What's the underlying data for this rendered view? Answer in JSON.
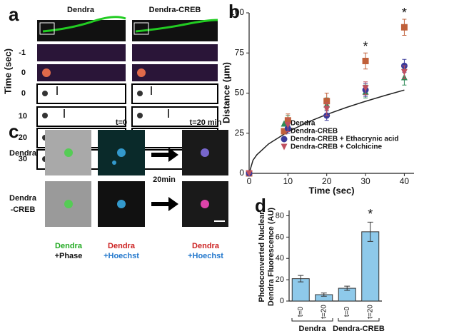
{
  "figure": {
    "letters": [
      "a",
      "b",
      "c",
      "d"
    ],
    "panel_a": {
      "columns": [
        "Dendra",
        "Dendra-CREB"
      ],
      "rows": [
        "-1",
        "0",
        "0",
        "10",
        "20",
        "30"
      ],
      "y_label": "Time (sec)"
    },
    "panel_c": {
      "t0": "t=0",
      "t20": "t=20 min",
      "row1": "Dendra",
      "row2": [
        "Dendra",
        "-CREB"
      ],
      "arrow": "20min",
      "bottom": [
        [
          "Dendra",
          "+Phase"
        ],
        [
          "Dendra",
          "+Hoechst"
        ],
        [
          "Dendra",
          "+Hoechst"
        ]
      ]
    }
  },
  "chart_data": [
    {
      "type": "scatter",
      "xlabel": "Time (sec)",
      "ylabel": "Distance (μm)",
      "x": [
        0,
        10,
        20,
        30,
        40
      ],
      "xlim": [
        0,
        42.5
      ],
      "ylim": [
        0,
        100
      ],
      "xticks": [
        0,
        10,
        20,
        30,
        40
      ],
      "yticks": [
        0,
        25,
        50,
        75,
        100
      ],
      "series": [
        {
          "name": "Dendra",
          "color": "#2e8b57",
          "marker": "triangle",
          "values": [
            0,
            33,
            43,
            51,
            60
          ],
          "errors": [
            0,
            3,
            4,
            4,
            5
          ]
        },
        {
          "name": "Dendra-CREB",
          "color": "#c0603a",
          "marker": "square",
          "values": [
            0,
            33,
            45,
            70,
            91
          ],
          "errors": [
            0,
            4,
            5,
            5,
            5
          ]
        },
        {
          "name": "Dendra-CREB + Ethacrynic acid",
          "color": "#3a3a9a",
          "marker": "circle",
          "values": [
            0,
            28,
            36,
            52,
            67
          ],
          "errors": [
            0,
            3,
            3,
            4,
            4
          ]
        },
        {
          "name": "Dendra-CREB + Colchicine",
          "color": "#c05060",
          "marker": "down",
          "values": [
            0,
            30,
            40,
            53,
            63
          ],
          "errors": [
            0,
            4,
            4,
            4,
            4
          ]
        }
      ],
      "fit": {
        "x": [
          0,
          1,
          2,
          5,
          10,
          15,
          20,
          25,
          30,
          35,
          40
        ],
        "values": [
          0,
          8.2,
          11.6,
          18.3,
          25.9,
          31.8,
          36.7,
          41,
          44.9,
          48.5,
          51.9
        ],
        "color": "#222"
      },
      "annotations": [
        {
          "text": "*",
          "x": 30
        },
        {
          "text": "*",
          "x": 40
        }
      ]
    },
    {
      "type": "bar",
      "ylabel": [
        "Photoconverted Nuclear",
        "Dendra Fluorescence (AU)"
      ],
      "categories": [
        "t=0",
        "t=20",
        "t=0",
        "t=20"
      ],
      "values": [
        21,
        6,
        12,
        65
      ],
      "errors": [
        3,
        1.5,
        2,
        9
      ],
      "value_annotations": [
        null,
        null,
        null,
        "*"
      ],
      "groups": [
        "Dendra",
        "Dendra-CREB"
      ],
      "color": "#8ec9ea",
      "ylim": [
        0,
        85
      ],
      "yticks": [
        0,
        20,
        40,
        60,
        80
      ]
    }
  ]
}
